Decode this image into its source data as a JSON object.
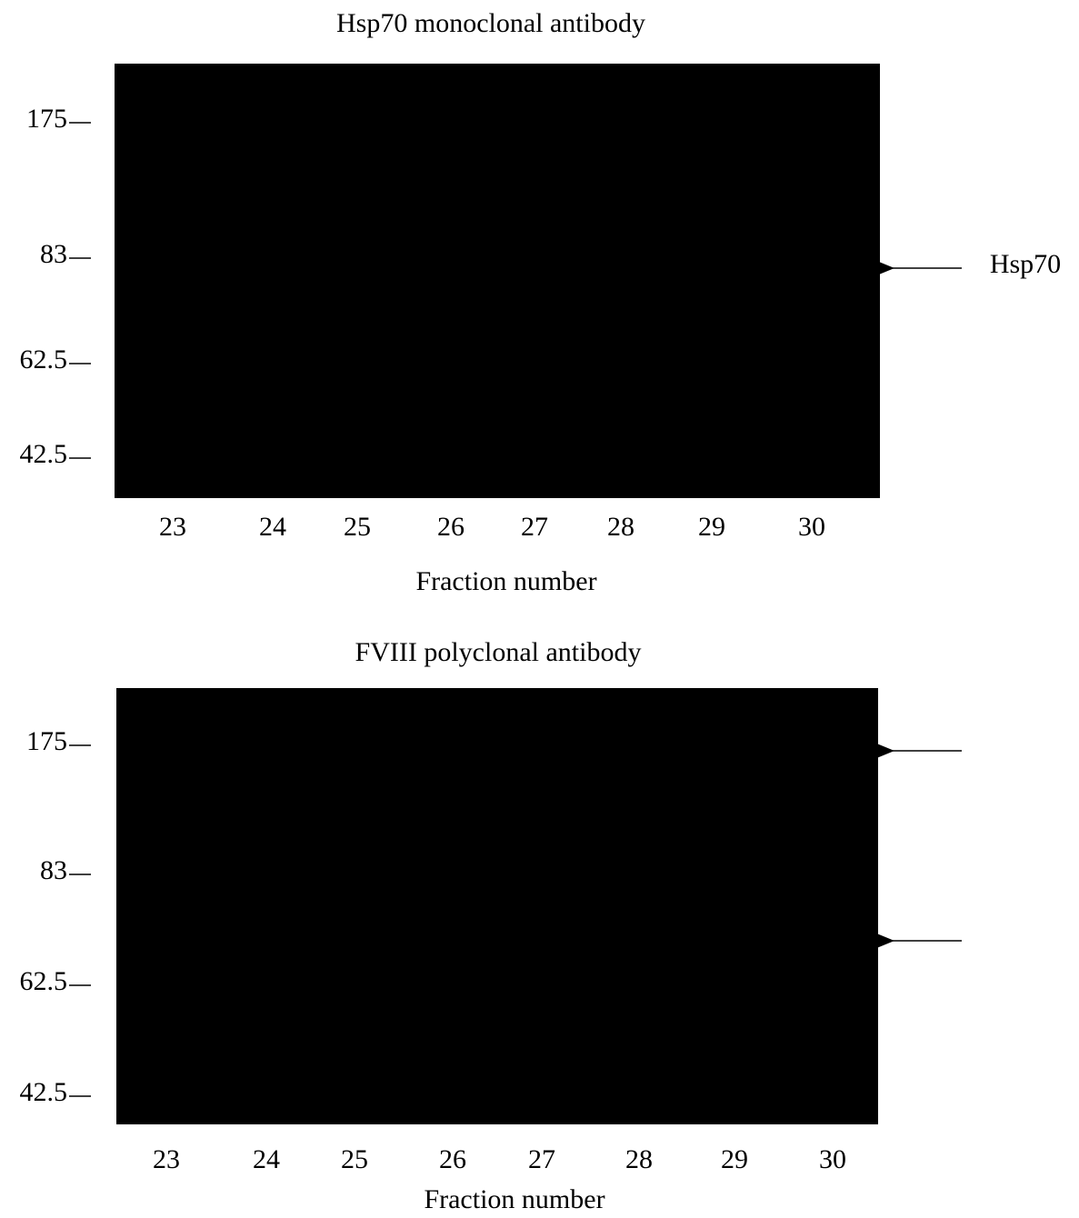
{
  "panels": [
    {
      "title": "Hsp70 monoclonal antibody",
      "markers": [
        "175",
        "83",
        "62.5",
        "42.5"
      ],
      "lanes": [
        "23",
        "24",
        "25",
        "26",
        "27",
        "28",
        "29",
        "30"
      ],
      "x_label": "Fraction number",
      "arrow_label": "Hsp70"
    },
    {
      "title": "FVIII polyclonal antibody",
      "markers": [
        "175",
        "83",
        "62.5",
        "42.5"
      ],
      "lanes": [
        "23",
        "24",
        "25",
        "26",
        "27",
        "28",
        "29",
        "30"
      ],
      "x_label": "Fraction number"
    }
  ]
}
